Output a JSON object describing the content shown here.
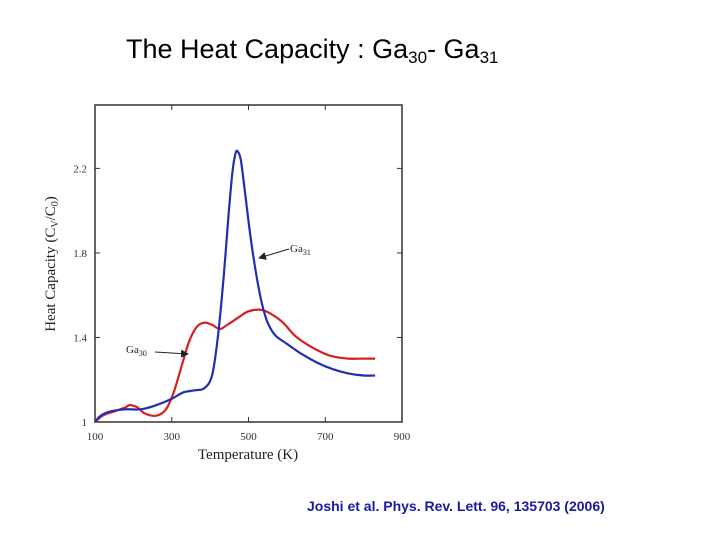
{
  "slide": {
    "title_main": "The Heat Capacity : Ga",
    "title_sub1": "30",
    "title_mid": "- Ga",
    "title_sub2": "31",
    "citation": "Joshi et al. Phys. Rev. Lett.  96, 135703 (2006)"
  },
  "colors": {
    "ga30": "#d42020",
    "ga31": "#1f2fb0",
    "frame": "#333333"
  },
  "chart_data": {
    "type": "line",
    "xlabel": "Temperature (K)",
    "ylabel_parts": [
      "Heat Capacity (C",
      "V",
      "/C",
      "0",
      ")"
    ],
    "xlim": [
      100,
      900
    ],
    "ylim": [
      1.0,
      2.5
    ],
    "x_ticks": [
      100,
      300,
      500,
      700,
      900
    ],
    "y_ticks": [
      1.0,
      1.4,
      1.8,
      2.2
    ],
    "x_tick_labels": [
      "100",
      "300",
      "500",
      "700",
      "900"
    ],
    "y_tick_labels": [
      "1",
      "1.4",
      "1.8",
      "2.2"
    ],
    "grid": false,
    "annotations": [
      {
        "base": "Ga",
        "sub": "31"
      },
      {
        "base": "Ga",
        "sub": "30"
      }
    ],
    "series": [
      {
        "key": "ga30",
        "points": [
          [
            100,
            1.0
          ],
          [
            120,
            1.03
          ],
          [
            150,
            1.05
          ],
          [
            180,
            1.07
          ],
          [
            190,
            1.08
          ],
          [
            210,
            1.07
          ],
          [
            230,
            1.04
          ],
          [
            260,
            1.03
          ],
          [
            285,
            1.06
          ],
          [
            305,
            1.14
          ],
          [
            325,
            1.26
          ],
          [
            345,
            1.38
          ],
          [
            365,
            1.45
          ],
          [
            385,
            1.47
          ],
          [
            405,
            1.46
          ],
          [
            425,
            1.44
          ],
          [
            445,
            1.46
          ],
          [
            470,
            1.49
          ],
          [
            495,
            1.52
          ],
          [
            515,
            1.53
          ],
          [
            535,
            1.53
          ],
          [
            560,
            1.51
          ],
          [
            590,
            1.47
          ],
          [
            620,
            1.41
          ],
          [
            650,
            1.37
          ],
          [
            690,
            1.33
          ],
          [
            720,
            1.31
          ],
          [
            760,
            1.3
          ],
          [
            800,
            1.3
          ],
          [
            830,
            1.3
          ]
        ]
      },
      {
        "key": "ga31",
        "points": [
          [
            100,
            1.0
          ],
          [
            115,
            1.03
          ],
          [
            140,
            1.05
          ],
          [
            180,
            1.06
          ],
          [
            220,
            1.06
          ],
          [
            260,
            1.08
          ],
          [
            300,
            1.11
          ],
          [
            330,
            1.14
          ],
          [
            360,
            1.15
          ],
          [
            385,
            1.16
          ],
          [
            405,
            1.22
          ],
          [
            420,
            1.4
          ],
          [
            435,
            1.68
          ],
          [
            448,
            1.98
          ],
          [
            458,
            2.18
          ],
          [
            466,
            2.27
          ],
          [
            472,
            2.28
          ],
          [
            480,
            2.24
          ],
          [
            490,
            2.1
          ],
          [
            505,
            1.88
          ],
          [
            520,
            1.7
          ],
          [
            535,
            1.56
          ],
          [
            550,
            1.47
          ],
          [
            570,
            1.41
          ],
          [
            600,
            1.37
          ],
          [
            640,
            1.32
          ],
          [
            680,
            1.28
          ],
          [
            720,
            1.25
          ],
          [
            760,
            1.23
          ],
          [
            800,
            1.22
          ],
          [
            830,
            1.22
          ]
        ]
      }
    ]
  }
}
